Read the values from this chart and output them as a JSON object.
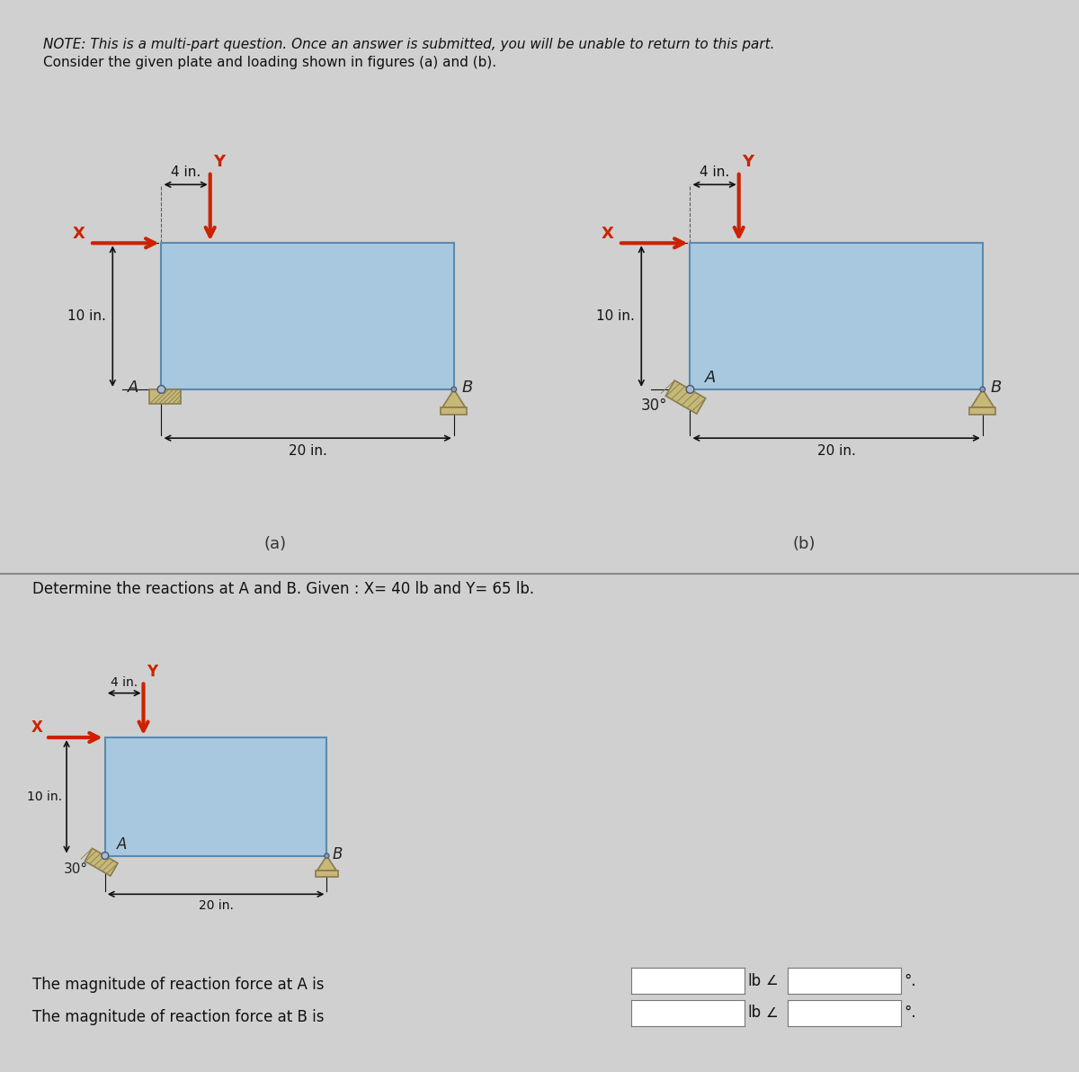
{
  "bg_color": "#d0d0d0",
  "plate_color": "#a8c8e0",
  "plate_edge_color": "#5a8ab0",
  "arrow_color": "#cc2200",
  "support_tan_color": "#c8b878",
  "support_dark_color": "#8a7a50",
  "dim_color": "#111111",
  "note_line1": "NOTE: This is a multi-part question. Once an answer is submitted, you will be unable to return to this part.",
  "note_line2": "Consider the given plate and loading shown in figures (a) and (b).",
  "problem_text": "Determine the reactions at A and B. Given : X= 40 lb and Y= 65 lb.",
  "reaction_A_text": "The magnitude of reaction force at A is",
  "reaction_B_text": "The magnitude of reaction force at B is",
  "lb_unit": "lb",
  "fig_a_label": "(a)",
  "fig_b_label": "(b)",
  "dim_20": "20 in.",
  "dim_10": "10 in.",
  "dim_4": "4 in.",
  "label_A": "A",
  "label_B": "B",
  "label_X": "X",
  "label_Y": "Y",
  "angle_30": "30°"
}
